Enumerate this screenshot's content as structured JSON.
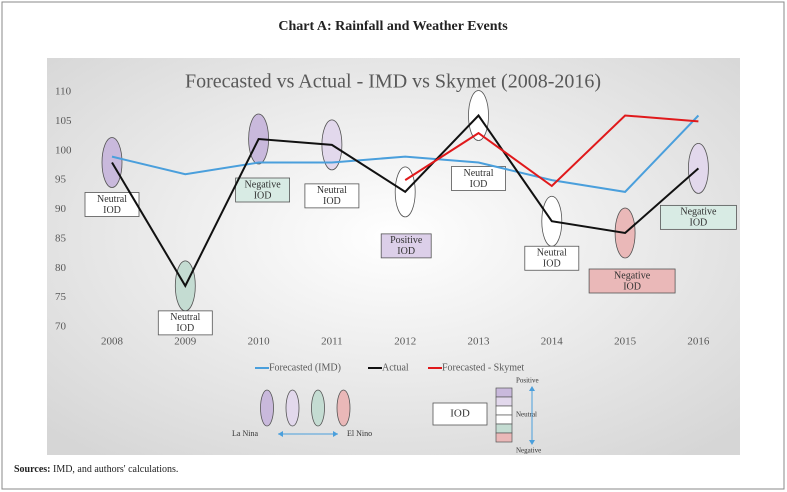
{
  "header": {
    "title": "Chart A: Rainfall and Weather Events"
  },
  "chart_data": {
    "type": "line",
    "title": "Forecasted vs Actual - IMD vs Skymet (2008-2016)",
    "categories": [
      "2008",
      "2009",
      "2010",
      "2011",
      "2012",
      "2013",
      "2014",
      "2015",
      "2016"
    ],
    "series": [
      {
        "name": "Forecasted (IMD)",
        "color": "#4a9fdc",
        "values": [
          99,
          96,
          98,
          98,
          99,
          98,
          95,
          93,
          106
        ]
      },
      {
        "name": "Actual",
        "color": "#111111",
        "values": [
          98,
          77,
          102,
          101,
          93,
          106,
          88,
          86,
          97
        ]
      },
      {
        "name": "Forecasted - Skymet",
        "color": "#e0191b",
        "values": [
          null,
          null,
          null,
          null,
          95,
          103,
          94,
          106,
          105
        ]
      }
    ],
    "ylim": [
      70,
      110
    ],
    "yticks": [
      70,
      75,
      80,
      85,
      90,
      95,
      100,
      105,
      110
    ],
    "grid": false,
    "legend": "bottom",
    "annotations": [
      {
        "lines": [
          "Neutral",
          "IOD"
        ],
        "ellipse_color": "#c9b9dc",
        "box_color": "#ffffff"
      },
      {
        "lines": [
          "Neutral",
          "IOD"
        ],
        "ellipse_color": "#c4dcd2",
        "box_color": "#ffffff"
      },
      {
        "lines": [
          "Negative",
          "IOD"
        ],
        "ellipse_color": "#c9b9dc",
        "box_color": "#d8ebe4"
      },
      {
        "lines": [
          "Neutral",
          "IOD"
        ],
        "ellipse_color": "#e2d8ec",
        "box_color": "#ffffff"
      },
      {
        "lines": [
          "Positive",
          "IOD"
        ],
        "ellipse_color": "#ffffff",
        "box_color": "#dccfe9"
      },
      {
        "lines": [
          "Neutral",
          "IOD"
        ],
        "ellipse_color": "#ffffff",
        "box_color": "#ffffff"
      },
      {
        "lines": [
          "Neutral",
          "IOD"
        ],
        "ellipse_color": "#ffffff",
        "box_color": "#ffffff"
      },
      {
        "lines": [
          "Negative",
          "IOD"
        ],
        "ellipse_color": "#eab8b8",
        "box_color": "#eab8b8"
      },
      {
        "lines": [
          "Negative",
          "IOD"
        ],
        "ellipse_color": "#e2d8ec",
        "box_color": "#d8ebe4"
      }
    ]
  },
  "key": {
    "oval_colors": [
      "#c9b9dc",
      "#e2d8ec",
      "#c4dcd2",
      "#eab8b8"
    ],
    "left": "La Nina",
    "right": "El Nino",
    "box": "IOD",
    "scale_colors": [
      "#c9b9dc",
      "#e2d8ec",
      "#ffffff",
      "#ffffff",
      "#c4dcd2",
      "#eab8b8"
    ],
    "top": "Positive",
    "middle": "Neutral",
    "bottom": "Negative"
  },
  "sources": {
    "label": "Sources:",
    "text": " IMD, and authors' calculations."
  }
}
